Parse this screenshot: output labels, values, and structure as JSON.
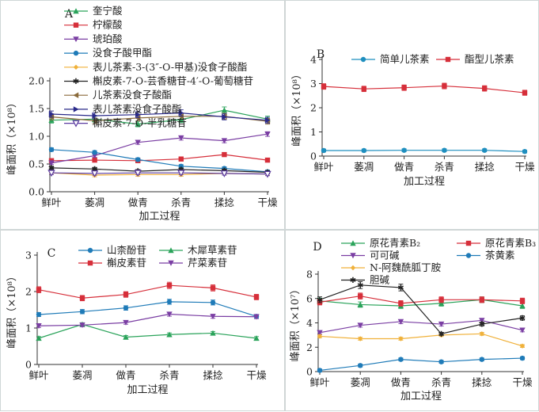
{
  "chart_data": [
    {
      "type": "line",
      "panel_label": "A",
      "xlabel": "加工过程",
      "ylabel": "峰面积（×10⁸）",
      "categories": [
        "鲜叶",
        "萎凋",
        "做青",
        "杀青",
        "揉捻",
        "干燥"
      ],
      "ylim": [
        0,
        2.0
      ],
      "yticks": [
        "0.0",
        "0.5",
        "1.0",
        "1.5",
        "2.0"
      ],
      "legend_placement": "top",
      "series": [
        {
          "name": "奎宁酸",
          "color": "#2aa35a",
          "marker": "triangle",
          "values": [
            1.29,
            1.31,
            1.22,
            1.3,
            1.47,
            1.31
          ]
        },
        {
          "name": "柠檬酸",
          "color": "#d62f3a",
          "marker": "square",
          "values": [
            0.56,
            0.57,
            0.56,
            0.59,
            0.67,
            0.57
          ]
        },
        {
          "name": "琥珀酸",
          "color": "#7a3ea3",
          "marker": "triangle-down",
          "values": [
            0.52,
            0.65,
            0.89,
            0.97,
            0.92,
            1.04
          ]
        },
        {
          "name": "没食子酸甲酯",
          "color": "#1f7bb8",
          "marker": "circle",
          "values": [
            0.76,
            0.71,
            0.58,
            0.46,
            0.42,
            0.36
          ]
        },
        {
          "name": "表儿茶素-3-(3″-O-甲基)没食子酸酯",
          "color": "#f0b13a",
          "marker": "diamond",
          "values": [
            0.34,
            0.3,
            0.31,
            0.31,
            0.33,
            0.32
          ]
        },
        {
          "name": "槲皮素-7-O-芸香糖苷-4′-O-葡萄糖苷",
          "color": "#222222",
          "marker": "star",
          "values": [
            0.43,
            0.41,
            0.37,
            0.4,
            0.38,
            0.35
          ]
        },
        {
          "name": "儿茶素没食子酸酯",
          "color": "#8a6a3a",
          "marker": "triangle-left",
          "values": [
            1.35,
            1.28,
            1.33,
            1.36,
            1.36,
            1.27
          ]
        },
        {
          "name": "表儿茶素没食子酸酯",
          "color": "#2a2a8a",
          "marker": "triangle-right",
          "values": [
            1.4,
            1.37,
            1.39,
            1.42,
            1.35,
            1.29
          ]
        },
        {
          "name": "槲皮素-7-O-半乳糖苷",
          "color": "#5a3aa0",
          "marker": "triangle-down-open",
          "values": [
            0.34,
            0.33,
            0.34,
            0.34,
            0.33,
            0.32
          ]
        }
      ]
    },
    {
      "type": "line",
      "panel_label": "B",
      "xlabel": "加工过程",
      "ylabel": "峰面积（×10⁸）",
      "categories": [
        "鲜叶",
        "萎凋",
        "做青",
        "杀青",
        "揉捻",
        "干燥"
      ],
      "ylim": [
        0,
        4
      ],
      "yticks": [
        "0",
        "1",
        "2",
        "3",
        "4"
      ],
      "legend_placement": "top",
      "series": [
        {
          "name": "简单儿茶素",
          "color": "#1f8fbf",
          "marker": "circle",
          "values": [
            0.23,
            0.23,
            0.24,
            0.24,
            0.24,
            0.19
          ]
        },
        {
          "name": "酯型儿茶素",
          "color": "#d62f3a",
          "marker": "square",
          "values": [
            2.88,
            2.78,
            2.83,
            2.9,
            2.8,
            2.62
          ]
        }
      ]
    },
    {
      "type": "line",
      "panel_label": "C",
      "xlabel": "加工过程",
      "ylabel": "峰面积（×10⁸）",
      "categories": [
        "鲜叶",
        "萎凋",
        "做青",
        "杀青",
        "揉捻",
        "干燥"
      ],
      "ylim": [
        0,
        3
      ],
      "yticks": [
        "0",
        "1",
        "2",
        "3"
      ],
      "legend_placement": "top",
      "series": [
        {
          "name": "山柰酚苷",
          "color": "#1f7bb8",
          "marker": "circle",
          "values": [
            1.37,
            1.45,
            1.55,
            1.72,
            1.7,
            1.32
          ]
        },
        {
          "name": "木犀草素苷",
          "color": "#2aa35a",
          "marker": "triangle",
          "values": [
            0.72,
            1.1,
            0.75,
            0.82,
            0.86,
            0.72
          ]
        },
        {
          "name": "槲皮素苷",
          "color": "#d62f3a",
          "marker": "square",
          "values": [
            2.05,
            1.82,
            1.92,
            2.17,
            2.1,
            1.85
          ]
        },
        {
          "name": "芹菜素苷",
          "color": "#7a3ea3",
          "marker": "triangle-down",
          "values": [
            1.06,
            1.08,
            1.15,
            1.38,
            1.32,
            1.31
          ]
        }
      ]
    },
    {
      "type": "line",
      "panel_label": "D",
      "xlabel": "加工过程",
      "ylabel": "峰面积（×10⁷）",
      "categories": [
        "鲜叶",
        "萎凋",
        "做青",
        "杀青",
        "揉捻",
        "干燥"
      ],
      "ylim": [
        0,
        8
      ],
      "yticks": [
        "0",
        "2",
        "4",
        "6",
        "8"
      ],
      "legend_placement": "top",
      "series": [
        {
          "name": "原花青素B₂",
          "color": "#2aa35a",
          "marker": "triangle",
          "values": [
            5.8,
            5.5,
            5.4,
            5.6,
            5.9,
            5.4
          ]
        },
        {
          "name": "原花青素B₃",
          "color": "#d62f3a",
          "marker": "square",
          "values": [
            5.7,
            6.2,
            5.6,
            5.9,
            5.9,
            5.8
          ]
        },
        {
          "name": "可可碱",
          "color": "#7a3ea3",
          "marker": "triangle-down",
          "values": [
            3.2,
            3.8,
            4.1,
            3.9,
            4.2,
            3.4
          ]
        },
        {
          "name": "茶黄素",
          "color": "#1f7bb8",
          "marker": "circle",
          "values": [
            0.1,
            0.5,
            1.0,
            0.8,
            1.0,
            1.1
          ]
        },
        {
          "name": "N-阿魏酰胍丁胺",
          "color": "#f0b13a",
          "marker": "diamond",
          "values": [
            2.9,
            2.7,
            2.7,
            3.0,
            3.1,
            2.1
          ]
        },
        {
          "name": "胆碱",
          "color": "#222222",
          "marker": "star",
          "values": [
            5.9,
            7.1,
            6.9,
            3.1,
            3.9,
            4.4
          ]
        }
      ]
    }
  ]
}
